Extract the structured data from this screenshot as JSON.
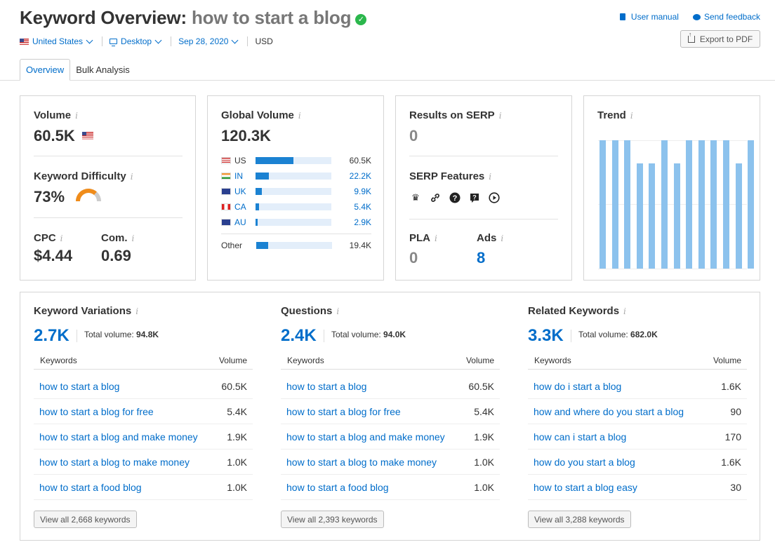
{
  "header": {
    "title_prefix": "Keyword Overview:",
    "keyword": "how to start a blog",
    "user_manual": "User manual",
    "send_feedback": "Send feedback",
    "export_pdf": "Export to PDF"
  },
  "filters": {
    "country": "United States",
    "device": "Desktop",
    "date": "Sep 28, 2020",
    "currency": "USD"
  },
  "tabs": [
    "Overview",
    "Bulk Analysis"
  ],
  "volume_card": {
    "volume_label": "Volume",
    "volume_value": "60.5K",
    "kd_label": "Keyword Difficulty",
    "kd_value": "73%",
    "kd_percent": 73,
    "cpc_label": "CPC",
    "cpc_value": "$4.44",
    "com_label": "Com.",
    "com_value": "0.69"
  },
  "global_volume": {
    "label": "Global Volume",
    "value": "120.3K",
    "rows": [
      {
        "code": "US",
        "value": "60.5K",
        "share": 0.5
      },
      {
        "code": "IN",
        "value": "22.2K",
        "share": 0.18
      },
      {
        "code": "UK",
        "value": "9.9K",
        "share": 0.08
      },
      {
        "code": "CA",
        "value": "5.4K",
        "share": 0.045
      },
      {
        "code": "AU",
        "value": "2.9K",
        "share": 0.025
      }
    ],
    "other": {
      "code": "Other",
      "value": "19.4K",
      "share": 0.16
    }
  },
  "serp_card": {
    "results_label": "Results on SERP",
    "results_value": "0",
    "features_label": "SERP Features",
    "features_icons": [
      "crown-icon",
      "link-icon",
      "question-icon",
      "faq-icon",
      "video-icon"
    ],
    "pla_label": "PLA",
    "pla_value": "0",
    "ads_label": "Ads",
    "ads_value": "8"
  },
  "trend": {
    "label": "Trend",
    "values": [
      1.0,
      1.0,
      1.0,
      0.82,
      0.82,
      1.0,
      0.82,
      1.0,
      1.0,
      1.0,
      1.0,
      0.82,
      1.0
    ]
  },
  "sections": [
    {
      "title": "Keyword Variations",
      "count": "2.7K",
      "total_label": "Total volume:",
      "total_value": "94.8K",
      "col_keywords": "Keywords",
      "col_volume": "Volume",
      "rows": [
        {
          "keyword": "how to start a blog",
          "volume": "60.5K"
        },
        {
          "keyword": "how to start a blog for free",
          "volume": "5.4K"
        },
        {
          "keyword": "how to start a blog and make money",
          "volume": "1.9K"
        },
        {
          "keyword": "how to start a blog to make money",
          "volume": "1.0K"
        },
        {
          "keyword": "how to start a food blog",
          "volume": "1.0K"
        }
      ],
      "view_all": "View all 2,668 keywords"
    },
    {
      "title": "Questions",
      "count": "2.4K",
      "total_label": "Total volume:",
      "total_value": "94.0K",
      "col_keywords": "Keywords",
      "col_volume": "Volume",
      "rows": [
        {
          "keyword": "how to start a blog",
          "volume": "60.5K"
        },
        {
          "keyword": "how to start a blog for free",
          "volume": "5.4K"
        },
        {
          "keyword": "how to start a blog and make money",
          "volume": "1.9K"
        },
        {
          "keyword": "how to start a blog to make money",
          "volume": "1.0K"
        },
        {
          "keyword": "how to start a food blog",
          "volume": "1.0K"
        }
      ],
      "view_all": "View all 2,393 keywords"
    },
    {
      "title": "Related Keywords",
      "count": "3.3K",
      "total_label": "Total volume:",
      "total_value": "682.0K",
      "col_keywords": "Keywords",
      "col_volume": "Volume",
      "rows": [
        {
          "keyword": "how do i start a blog",
          "volume": "1.6K"
        },
        {
          "keyword": "how and where do you start a blog",
          "volume": "90"
        },
        {
          "keyword": "how can i start a blog",
          "volume": "170"
        },
        {
          "keyword": "how do you start a blog",
          "volume": "1.6K"
        },
        {
          "keyword": "how to start a blog easy",
          "volume": "30"
        }
      ],
      "view_all": "View all 3,288 keywords"
    }
  ],
  "colors": {
    "accent": "#006dca",
    "bar": "#1b82d2",
    "trend_bar": "#8cc2ed",
    "kd_gauge": "#f08c1a",
    "check": "#2bb74c"
  }
}
